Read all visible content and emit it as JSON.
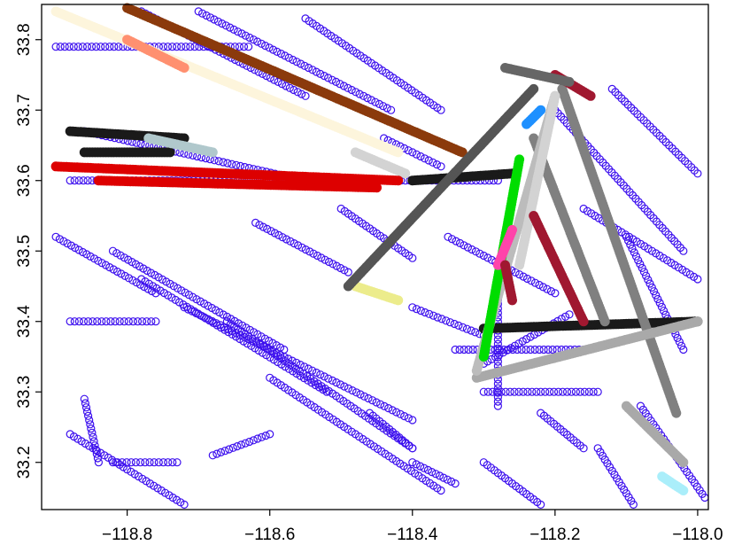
{
  "chart_data": {
    "type": "scatter",
    "title": "",
    "xlabel": "",
    "ylabel": "",
    "xlim": [
      -118.92,
      -117.985
    ],
    "ylim": [
      33.133,
      33.85
    ],
    "x_ticks": [
      -118.8,
      -118.6,
      -118.4,
      -118.2,
      -118.0
    ],
    "x_tick_labels": [
      "−118.8",
      "−118.6",
      "−118.4",
      "−118.2",
      "−118.0"
    ],
    "y_ticks": [
      33.2,
      33.3,
      33.4,
      33.5,
      33.6,
      33.7,
      33.8
    ],
    "y_tick_labels": [
      "33.2",
      "33.3",
      "33.4",
      "33.5",
      "33.6",
      "33.7",
      "33.8"
    ],
    "grid": false,
    "legend": "none",
    "background_series": {
      "color": "#3d10ee",
      "marker": "open-circle",
      "tracks": [
        [
          -118.78,
          33.84,
          -118.55,
          33.72
        ],
        [
          -118.7,
          33.84,
          -118.43,
          33.7
        ],
        [
          -118.55,
          33.83,
          -118.36,
          33.7
        ],
        [
          -118.9,
          33.79,
          -118.63,
          33.79
        ],
        [
          -118.88,
          33.6,
          -118.28,
          33.6
        ],
        [
          -118.86,
          33.67,
          -118.55,
          33.6
        ],
        [
          -118.9,
          33.52,
          -118.76,
          33.44
        ],
        [
          -118.82,
          33.5,
          -118.58,
          33.36
        ],
        [
          -118.78,
          33.46,
          -118.52,
          33.3
        ],
        [
          -118.72,
          33.42,
          -118.4,
          33.26
        ],
        [
          -118.66,
          33.4,
          -118.4,
          33.22
        ],
        [
          -118.6,
          33.32,
          -118.36,
          33.16
        ],
        [
          -118.86,
          33.29,
          -118.84,
          33.2
        ],
        [
          -118.88,
          33.24,
          -118.72,
          33.14
        ],
        [
          -118.88,
          33.4,
          -118.76,
          33.4
        ],
        [
          -118.82,
          33.2,
          -118.73,
          33.2
        ],
        [
          -118.68,
          33.21,
          -118.6,
          33.24
        ],
        [
          -118.28,
          33.45,
          -118.28,
          33.28
        ],
        [
          -118.34,
          33.36,
          -118.16,
          33.36
        ],
        [
          -118.3,
          33.34,
          -118.18,
          33.41
        ],
        [
          -118.3,
          33.3,
          -118.14,
          33.3
        ],
        [
          -118.35,
          33.52,
          -118.2,
          33.44
        ],
        [
          -118.4,
          33.42,
          -118.3,
          33.38
        ],
        [
          -118.12,
          33.73,
          -118.0,
          33.61
        ],
        [
          -118.2,
          33.7,
          -118.02,
          33.5
        ],
        [
          -118.16,
          33.56,
          -118.0,
          33.46
        ],
        [
          -118.1,
          33.52,
          -118.02,
          33.36
        ],
        [
          -118.08,
          33.28,
          -117.99,
          33.15
        ],
        [
          -118.14,
          33.22,
          -118.09,
          33.14
        ],
        [
          -118.3,
          33.2,
          -118.22,
          33.14
        ],
        [
          -118.5,
          33.56,
          -118.4,
          33.49
        ],
        [
          -118.62,
          33.54,
          -118.49,
          33.47
        ],
        [
          -118.44,
          33.66,
          -118.36,
          33.62
        ],
        [
          -118.46,
          33.27,
          -118.4,
          33.22
        ],
        [
          -118.22,
          33.27,
          -118.16,
          33.22
        ],
        [
          -118.4,
          33.2,
          -118.34,
          33.17
        ]
      ]
    },
    "series": [
      {
        "color": "#8b3a0c",
        "points": [
          [
            -118.8,
            33.845
          ],
          [
            -118.33,
            33.64
          ]
        ]
      },
      {
        "color": "#fdf5dc",
        "points": [
          [
            -118.9,
            33.84
          ],
          [
            -118.42,
            33.64
          ]
        ]
      },
      {
        "color": "#ff9070",
        "points": [
          [
            -118.8,
            33.8
          ],
          [
            -118.72,
            33.76
          ]
        ]
      },
      {
        "color": "#d3d3d3",
        "points": [
          [
            -118.48,
            33.64
          ],
          [
            -118.41,
            33.61
          ]
        ]
      },
      {
        "color": "#1a1a1a",
        "points": [
          [
            -118.88,
            33.67
          ],
          [
            -118.72,
            33.66
          ]
        ]
      },
      {
        "color": "#1a1a1a",
        "points": [
          [
            -118.86,
            33.64
          ],
          [
            -118.74,
            33.64
          ]
        ]
      },
      {
        "color": "#1a1a1a",
        "points": [
          [
            -118.4,
            33.6
          ],
          [
            -118.26,
            33.61
          ]
        ]
      },
      {
        "color": "#1a1a1a",
        "points": [
          [
            -118.3,
            33.39
          ],
          [
            -118.0,
            33.4
          ]
        ]
      },
      {
        "color": "#b0c8cc",
        "points": [
          [
            -118.77,
            33.66
          ],
          [
            -118.68,
            33.64
          ]
        ]
      },
      {
        "color": "#dd0000",
        "points": [
          [
            -118.9,
            33.62
          ],
          [
            -118.42,
            33.6
          ]
        ]
      },
      {
        "color": "#dd0000",
        "points": [
          [
            -118.84,
            33.6
          ],
          [
            -118.45,
            33.59
          ]
        ]
      },
      {
        "color": "#ecec8c",
        "points": [
          [
            -118.48,
            33.45
          ],
          [
            -118.42,
            33.43
          ]
        ]
      },
      {
        "color": "#555555",
        "points": [
          [
            -118.49,
            33.45
          ],
          [
            -118.23,
            33.73
          ]
        ]
      },
      {
        "color": "#808080",
        "points": [
          [
            -118.19,
            33.73
          ],
          [
            -118.03,
            33.27
          ]
        ]
      },
      {
        "color": "#808080",
        "points": [
          [
            -118.23,
            33.66
          ],
          [
            -118.13,
            33.4
          ]
        ]
      },
      {
        "color": "#a9a9a9",
        "points": [
          [
            -118.31,
            33.32
          ],
          [
            -118.0,
            33.4
          ]
        ]
      },
      {
        "color": "#bcbcbc",
        "points": [
          [
            -118.31,
            33.33
          ],
          [
            -118.2,
            33.72
          ]
        ]
      },
      {
        "color": "#d3d3d3",
        "points": [
          [
            -118.25,
            33.48
          ],
          [
            -118.2,
            33.72
          ]
        ]
      },
      {
        "color": "#a9a9a9",
        "points": [
          [
            -118.1,
            33.28
          ],
          [
            -118.02,
            33.2
          ]
        ]
      },
      {
        "color": "#00dd00",
        "points": [
          [
            -118.3,
            33.35
          ],
          [
            -118.25,
            33.63
          ]
        ]
      },
      {
        "color": "#ff44aa",
        "points": [
          [
            -118.28,
            33.48
          ],
          [
            -118.26,
            33.53
          ]
        ]
      },
      {
        "color": "#1e90ff",
        "points": [
          [
            -118.24,
            33.68
          ],
          [
            -118.22,
            33.7
          ]
        ]
      },
      {
        "color": "#a01830",
        "points": [
          [
            -118.23,
            33.55
          ],
          [
            -118.16,
            33.4
          ]
        ]
      },
      {
        "color": "#a01830",
        "points": [
          [
            -118.2,
            33.75
          ],
          [
            -118.15,
            33.72
          ]
        ]
      },
      {
        "color": "#a01830",
        "points": [
          [
            -118.27,
            33.48
          ],
          [
            -118.26,
            33.43
          ]
        ]
      },
      {
        "color": "#666666",
        "points": [
          [
            -118.27,
            33.76
          ],
          [
            -118.18,
            33.74
          ]
        ]
      },
      {
        "color": "#aaeefa",
        "points": [
          [
            -118.05,
            33.18
          ],
          [
            -118.02,
            33.16
          ]
        ]
      }
    ]
  }
}
